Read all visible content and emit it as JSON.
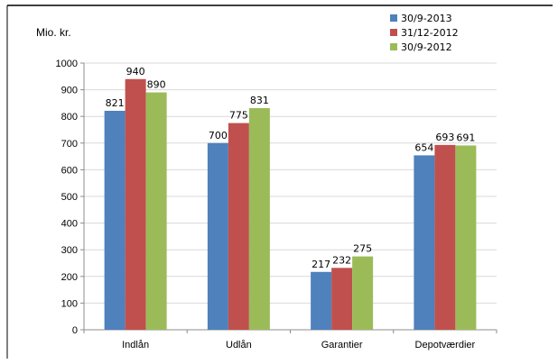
{
  "chart_data": {
    "type": "bar",
    "categories": [
      "Indlån",
      "Udlån",
      "Garantier",
      "Depotværdier"
    ],
    "series": [
      {
        "name": "30/9-2013",
        "color": "#4f81bd",
        "values": [
          821,
          700,
          217,
          654
        ]
      },
      {
        "name": "31/12-2012",
        "color": "#c0504d",
        "values": [
          940,
          775,
          232,
          693
        ]
      },
      {
        "name": "30/9-2012",
        "color": "#9bbb59",
        "values": [
          890,
          831,
          275,
          691
        ]
      }
    ],
    "ylabel": "Mio. kr.",
    "ylim": [
      0,
      1000
    ],
    "yticks": [
      0,
      100,
      200,
      300,
      400,
      500,
      600,
      700,
      800,
      900,
      1000
    ],
    "grid": true,
    "legend_position": "top-right"
  }
}
